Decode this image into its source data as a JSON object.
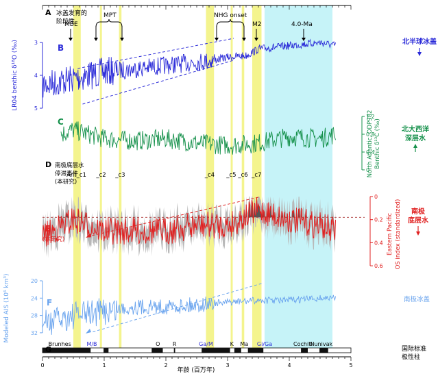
{
  "colors": {
    "blue": "#2a2ad8",
    "green": "#14904a",
    "red": "#e02020",
    "lightblue": "#6aa4ee",
    "yellow": "#f2f27a",
    "cyan": "#c6f3f8",
    "gray": "#b8b8b8",
    "dark": "#555555"
  },
  "panels": {
    "A": {
      "letter": "A",
      "label_line1": "冰盖发育的",
      "label_line2": "阶段性"
    },
    "B": {
      "letter": "B",
      "ylabel": "LR04 benthic δ¹⁸O (‰)",
      "right_label": "北半球冰盖",
      "ticks": [
        "3",
        "4",
        "5"
      ]
    },
    "C": {
      "letter": "C",
      "ylabel_line1": "North Atlantic, ODP982",
      "ylabel_line2": "Benthic δ¹³C (‰)",
      "right_label_line1": "北大西洋",
      "right_label_line2": "深层水",
      "ticks": [
        "1.2",
        "0.8",
        "0.4",
        "0"
      ]
    },
    "D": {
      "letter": "D",
      "label_line1": "南极底层水",
      "label_line2": "停滞事件",
      "label_line3": "(本研究)"
    },
    "E": {
      "letter": "E",
      "sub": "(本研究)",
      "ylabel_line1": "Eastern Pacific",
      "ylabel_line2": "OS index (standardized)",
      "right_label_line1": "南极",
      "right_label_line2": "底层水",
      "ticks": [
        "0",
        "0.2",
        "0.4",
        "0.6"
      ]
    },
    "F": {
      "letter": "F",
      "ylabel": "Modeled AIS (10⁶ km³)",
      "right_label": "南极冰盖",
      "ticks": [
        "20",
        "24",
        "28",
        "32"
      ]
    },
    "G": {
      "letter": "G",
      "right_label_line1": "国际标准",
      "right_label_line2": "极性柱"
    }
  },
  "events_top": {
    "MBE": "MBE",
    "MPT": "MPT",
    "NHG": "NHG onset",
    "M2": "M2",
    "Ma4": "4.0-Ma"
  },
  "stagnation_events": [
    "Ant_c1",
    "_c2",
    "_c3",
    "_c4",
    "_c5",
    "_c6",
    "_c7"
  ],
  "polarity_labels": {
    "Brunhes": "Brunhes",
    "MB": "M/B",
    "O": "O",
    "R": "R",
    "GaM": "Ga/M",
    "K": "K",
    "Ma": "Ma",
    "GiGa": "Gi/Ga",
    "Cochiti": "Cochiti",
    "Nunivak": "Nunivak"
  },
  "xaxis": {
    "label": "年龄 (百万年)",
    "ticks": [
      "0",
      "1",
      "2",
      "3",
      "4",
      "5"
    ]
  },
  "chart_data": {
    "type": "line",
    "x_unit": "Ma",
    "xlim": [
      0,
      5
    ],
    "xlabel": "年龄 (百万年)",
    "highlight_bands_ma": [
      [
        0.5,
        0.62
      ],
      [
        0.93,
        0.96
      ],
      [
        1.24,
        1.28
      ],
      [
        2.65,
        2.78
      ],
      [
        3.05,
        3.08
      ],
      [
        3.23,
        3.27
      ],
      [
        3.4,
        3.55
      ]
    ],
    "cyan_band_ma": [
      3.6,
      4.7
    ],
    "series": [
      {
        "name": "LR04 benthic δ¹⁸O",
        "panel": "B",
        "ylim": [
          3,
          5
        ],
        "inverted": true,
        "x": [
          0,
          0.25,
          0.5,
          0.75,
          1.0,
          1.5,
          2.0,
          2.5,
          2.75,
          3.0,
          3.3,
          3.5,
          4.0,
          4.5,
          4.75
        ],
        "values": [
          4.3,
          4.2,
          4.1,
          4.0,
          3.9,
          3.8,
          3.7,
          3.6,
          3.55,
          3.45,
          3.4,
          3.2,
          3.1,
          3.0,
          3.1
        ]
      },
      {
        "name": "ODP982 benthic δ¹³C",
        "panel": "C",
        "ylim": [
          0,
          1.2
        ],
        "x": [
          0.3,
          0.5,
          1.0,
          1.5,
          2.0,
          2.5,
          3.0,
          3.5,
          4.0,
          4.5,
          4.75
        ],
        "values": [
          0.8,
          0.9,
          0.7,
          0.65,
          0.7,
          0.6,
          0.55,
          0.6,
          0.75,
          0.7,
          0.8
        ]
      },
      {
        "name": "OS index",
        "panel": "E",
        "ylim": [
          0,
          0.6
        ],
        "inverted": true,
        "x": [
          0,
          0.5,
          1.0,
          1.5,
          2.0,
          2.5,
          3.0,
          3.5,
          4.0,
          4.5,
          4.75
        ],
        "values": [
          0.35,
          0.2,
          0.3,
          0.3,
          0.3,
          0.25,
          0.25,
          0.12,
          0.2,
          0.25,
          0.3
        ]
      },
      {
        "name": "Modeled AIS",
        "panel": "F",
        "ylim": [
          20,
          32
        ],
        "inverted": true,
        "x": [
          0,
          0.5,
          1.0,
          1.5,
          2.0,
          2.5,
          3.0,
          3.5,
          4.0,
          4.5,
          4.75
        ],
        "values": [
          30,
          28,
          27,
          26,
          26,
          25.5,
          25,
          24.5,
          24.5,
          24,
          24
        ]
      }
    ],
    "threshold_E": 0.18
  }
}
